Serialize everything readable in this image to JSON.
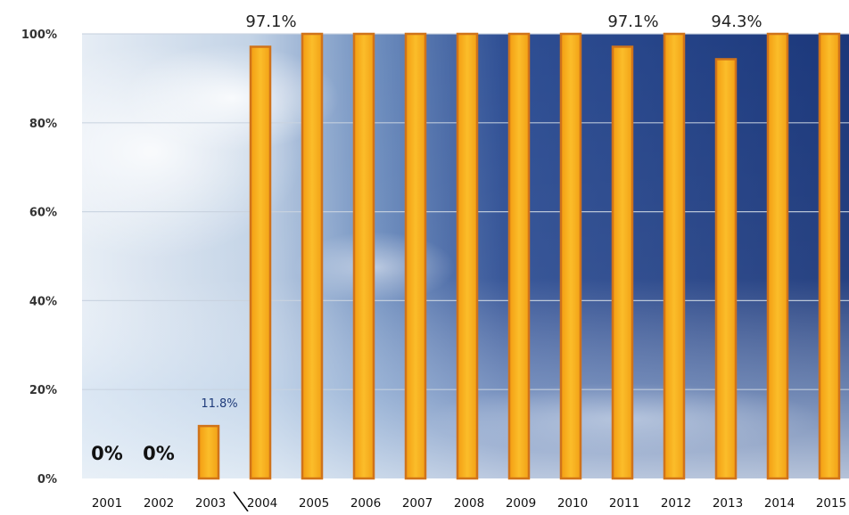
{
  "chart_data": {
    "type": "bar",
    "categories": [
      "2001",
      "2002",
      "2003",
      "2004",
      "2005",
      "2006",
      "2007",
      "2008",
      "2009",
      "2010",
      "2011",
      "2012",
      "2013",
      "2014",
      "2015"
    ],
    "values": [
      0,
      0,
      11.8,
      97.1,
      100,
      100,
      100,
      100,
      100,
      100,
      97.1,
      100,
      94.3,
      100,
      100
    ],
    "data_labels": [
      "0%",
      "0%",
      "11.8%",
      "97.1%",
      "",
      "",
      "",
      "",
      "",
      "",
      "97.1%",
      "",
      "94.3%",
      "",
      ""
    ],
    "yticks": [
      "0%",
      "20%",
      "40%",
      "60%",
      "80%",
      "100%"
    ],
    "ylim": [
      0,
      100
    ],
    "grid": true,
    "title": "",
    "xlabel": "",
    "ylabel": ""
  },
  "colors": {
    "bar_fill": "#f7ae1c",
    "bar_stroke": "#d0731a",
    "sky_dark": "#1e3c7c",
    "sky_light": "#dfe8f2",
    "grid": "#c9d3e0"
  }
}
